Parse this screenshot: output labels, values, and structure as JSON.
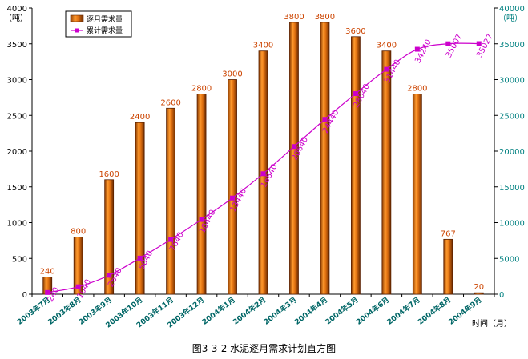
{
  "chart_data": {
    "type": "bar+line",
    "title": "",
    "categories": [
      "2003年7月",
      "2003年8月",
      "2003年9月",
      "2003年10月",
      "2003年11月",
      "2003年12月",
      "2004年1月",
      "2004年2月",
      "2004年3月",
      "2004年4月",
      "2004年5月",
      "2004年6月",
      "2004年7月",
      "2004年8月",
      "2004年9月"
    ],
    "series": [
      {
        "name": "逐月需求量",
        "type": "bar",
        "axis": "left",
        "color": "#d2691e",
        "values": [
          240,
          800,
          1600,
          2400,
          2600,
          2800,
          3000,
          3400,
          3800,
          3800,
          3600,
          3400,
          2800,
          767,
          20
        ],
        "labels": [
          "240",
          "800",
          "1600",
          "2400",
          "2600",
          "2800",
          "3000",
          "3400",
          "3800",
          "3800",
          "3600",
          "3400",
          "2800",
          "767",
          "20"
        ]
      },
      {
        "name": "累计需求量",
        "type": "line",
        "axis": "right",
        "color": "#cc00cc",
        "values": [
          240,
          1040,
          2640,
          5040,
          7640,
          10440,
          13440,
          16840,
          20640,
          24440,
          28040,
          31440,
          34240,
          35007,
          35027
        ],
        "labels": [
          "240",
          "1040",
          "2640",
          "5040",
          "7640",
          "10440",
          "13440",
          "16840",
          "20640",
          "24440",
          "28040",
          "31440",
          "34240",
          "35007",
          "35027"
        ]
      }
    ],
    "y_left": {
      "label": "（吨）",
      "min": 0,
      "max": 4000,
      "ticks": [
        0,
        500,
        1000,
        1500,
        2000,
        2500,
        3000,
        3500,
        4000
      ]
    },
    "y_right": {
      "label": "（吨）",
      "min": 0,
      "max": 40000,
      "ticks": [
        0,
        5000,
        10000,
        15000,
        20000,
        25000,
        30000,
        35000,
        40000
      ]
    },
    "x_axis_label": "时间（月）",
    "legend_position": "top-left",
    "grid": false
  },
  "caption": "图3-3-2   水泥逐月需求计划直方图",
  "colors": {
    "bar": "#d2691e",
    "line": "#cc00cc",
    "axis_left_text": "#000000",
    "axis_right_text": "#008080",
    "bar_label": "#cc4400",
    "line_label": "#cc00cc",
    "x_label": "#006666"
  }
}
